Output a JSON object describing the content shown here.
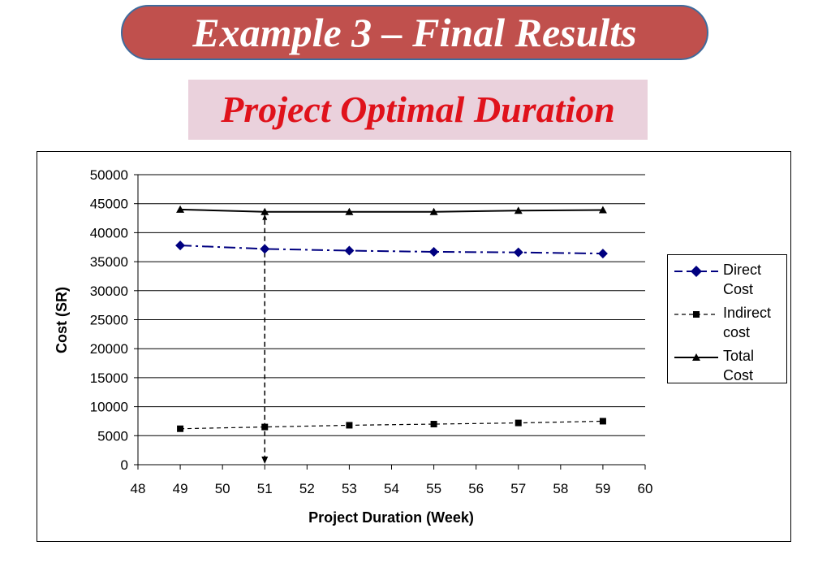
{
  "header": {
    "title": "Example 3 – Final Results",
    "subtitle": "Project Optimal Duration"
  },
  "colors": {
    "banner": "#c0504d",
    "banner_border": "#3f6b9c",
    "subtitle_bg": "#ead1dc",
    "subtitle_text": "#e0121b",
    "direct": "#000080",
    "indirect": "#000000",
    "total": "#000000"
  },
  "chart_data": {
    "type": "line",
    "title": "",
    "xlabel": "Project Duration (Week)",
    "ylabel": "Cost (SR)",
    "xlim": [
      48,
      60
    ],
    "ylim": [
      0,
      50000
    ],
    "x_ticks": [
      "48",
      "49",
      "50",
      "51",
      "52",
      "53",
      "54",
      "55",
      "56",
      "57",
      "58",
      "59",
      "60"
    ],
    "y_ticks": [
      "0",
      "5000",
      "10000",
      "15000",
      "20000",
      "25000",
      "30000",
      "35000",
      "40000",
      "45000",
      "50000"
    ],
    "grid": "horizontal",
    "legend_position": "right",
    "x": [
      49,
      51,
      53,
      55,
      57,
      59
    ],
    "series": [
      {
        "name": "Direct Cost",
        "values": [
          37800,
          37200,
          36900,
          36700,
          36600,
          36400
        ],
        "marker": "diamond",
        "line": "dash-dot"
      },
      {
        "name": "Indirect cost",
        "values": [
          6200,
          6500,
          6800,
          7000,
          7200,
          7500
        ],
        "marker": "square",
        "line": "dashed"
      },
      {
        "name": "Total Cost",
        "values": [
          44000,
          43600,
          43600,
          43600,
          43800,
          43900
        ],
        "marker": "triangle",
        "line": "solid"
      }
    ],
    "annotations": [
      {
        "type": "vertical-arrow",
        "x": 51,
        "from": 43600,
        "to": 0
      }
    ]
  }
}
